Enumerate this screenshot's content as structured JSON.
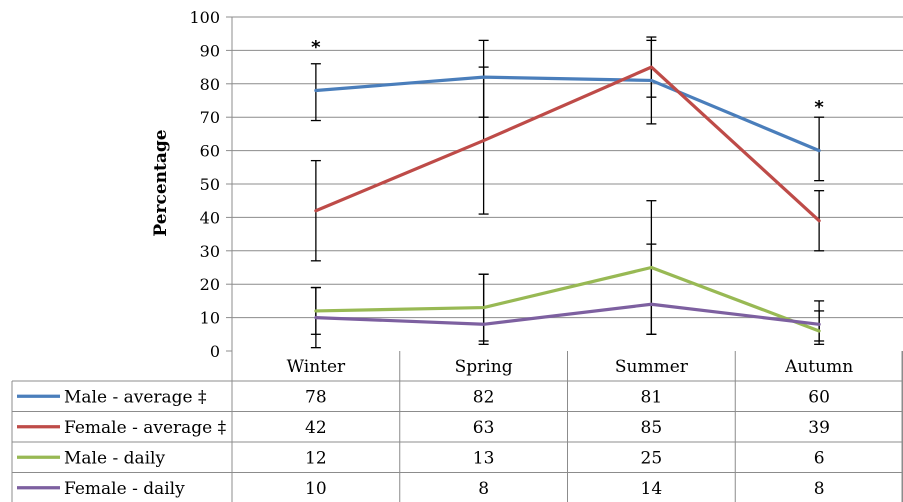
{
  "chart_data": {
    "type": "line",
    "ylabel": "Percentage",
    "ylim": [
      0,
      100
    ],
    "yticks": [
      "0",
      "10",
      "20",
      "30",
      "40",
      "50",
      "60",
      "70",
      "80",
      "90",
      "100"
    ],
    "categories": [
      "Winter",
      "Spring",
      "Summer",
      "Autumn"
    ],
    "grid": "horizontal",
    "legend": "table below chart",
    "series": [
      {
        "name": "Male - average ‡",
        "color": "#4a7ebb",
        "values": [
          78,
          82,
          81,
          60
        ],
        "error_low": [
          69,
          70,
          68,
          51
        ],
        "error_high": [
          86,
          93,
          94,
          70
        ],
        "table_values": [
          "78",
          "82",
          "81",
          "60"
        ]
      },
      {
        "name": "Female - average ‡",
        "color": "#be4b48",
        "values": [
          42,
          63,
          85,
          39
        ],
        "error_low": [
          27,
          41,
          76,
          30
        ],
        "error_high": [
          57,
          85,
          93,
          48
        ],
        "table_values": [
          "42",
          "63",
          "85",
          "39"
        ]
      },
      {
        "name": "Male - daily",
        "color": "#98b954",
        "values": [
          12,
          13,
          25,
          6
        ],
        "error_low": [
          5,
          3,
          5,
          2
        ],
        "error_high": [
          19,
          23,
          45,
          12
        ],
        "table_values": [
          "12",
          "13",
          "25",
          "6"
        ]
      },
      {
        "name": "Female - daily",
        "color": "#7d60a0",
        "values": [
          10,
          8,
          14,
          8
        ],
        "error_low": [
          1,
          2,
          5,
          3
        ],
        "error_high": [
          19,
          23,
          32,
          15
        ],
        "table_values": [
          "10",
          "8",
          "14",
          "8"
        ]
      }
    ],
    "annotations": [
      {
        "text": "*",
        "category": "Winter",
        "value": 91
      },
      {
        "text": "*",
        "category": "Autumn",
        "value": 73
      }
    ]
  }
}
